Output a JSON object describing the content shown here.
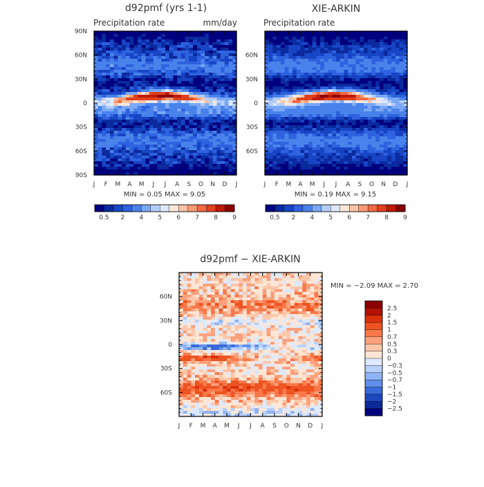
{
  "chart_data": [
    {
      "type": "heatmap",
      "title": "d92pmf (yrs 1-1)",
      "subtitle_left": "Precipitation rate",
      "subtitle_right": "mm/day",
      "x_ticks": [
        "J",
        "F",
        "M",
        "A",
        "M",
        "J",
        "J",
        "A",
        "S",
        "O",
        "N",
        "D",
        "J"
      ],
      "y_ticks": [
        "90N",
        "60N",
        "30N",
        "0",
        "30S",
        "60S",
        "90S"
      ],
      "stats": "MIN =    0.05 MAX =    9.05",
      "min": 0.05,
      "max": 9.05,
      "colorbar_labels": [
        "0.5",
        "2",
        "4",
        "5",
        "6",
        "7",
        "8",
        "9"
      ],
      "grid": false
    },
    {
      "type": "heatmap",
      "title": "XIE-ARKIN",
      "subtitle_left": "Precipitation rate",
      "subtitle_right": "",
      "x_ticks": [
        "J",
        "F",
        "M",
        "A",
        "M",
        "J",
        "J",
        "A",
        "S",
        "O",
        "N",
        "D",
        "J"
      ],
      "y_ticks": [
        "60N",
        "30N",
        "0",
        "30S",
        "60S"
      ],
      "stats": "MIN =    0.19 MAX =    9.15",
      "min": 0.19,
      "max": 9.15,
      "colorbar_labels": [
        "0.5",
        "2",
        "4",
        "5",
        "6",
        "7",
        "8",
        "9"
      ],
      "grid": false
    },
    {
      "type": "heatmap",
      "title": "d92pmf − XIE-ARKIN",
      "x_ticks": [
        "J",
        "F",
        "M",
        "A",
        "M",
        "J",
        "J",
        "A",
        "S",
        "O",
        "N",
        "D",
        "J"
      ],
      "y_ticks": [
        "60N",
        "30N",
        "0",
        "30S",
        "60S"
      ],
      "stats": "MIN =   −2.09 MAX =    2.70",
      "min": -2.09,
      "max": 2.7,
      "colorbar_labels": [
        "2.5",
        "2",
        "1.5",
        "1",
        "0.7",
        "0.5",
        "0.3",
        "0",
        "−0.3",
        "−0.5",
        "−0.7",
        "−1",
        "−1.5",
        "−2",
        "−2.5"
      ],
      "grid": false
    }
  ],
  "colors": {
    "precip_scale": [
      "#00007f",
      "#0a2a9e",
      "#1745c4",
      "#2e62de",
      "#4a82ec",
      "#7aa8f5",
      "#b3cdf9",
      "#dde9fc",
      "#fde7d8",
      "#fbc3a5",
      "#f89a74",
      "#f26a44",
      "#e0401c",
      "#bf1a08",
      "#8b0000"
    ],
    "diff_scale": [
      "#8b0000",
      "#b51206",
      "#d9300d",
      "#ee5322",
      "#f9794a",
      "#fba07b",
      "#fcc7a9",
      "#fde6d6",
      "#dde9fc",
      "#b7d0fa",
      "#8eb3f4",
      "#5f8fe9",
      "#3969d9",
      "#1d48bd",
      "#0c2a99",
      "#00007f"
    ]
  }
}
